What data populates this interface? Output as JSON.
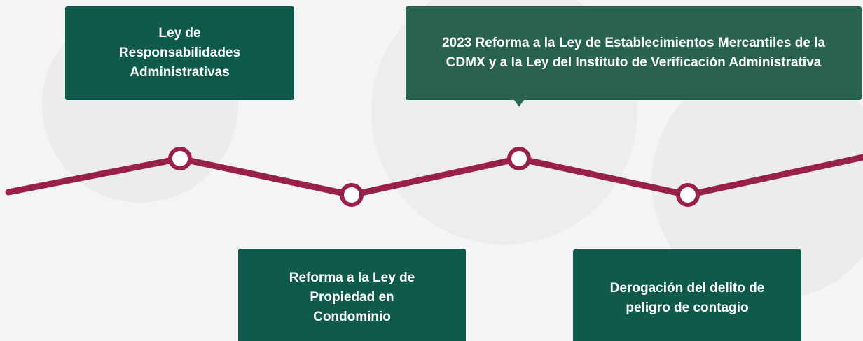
{
  "timeline": {
    "items": [
      {
        "label": "Ley de Responsabilidades Administrativas"
      },
      {
        "label": "Reforma a la Ley de Propiedad en Condominio"
      },
      {
        "label": "2023 Reforma a la Ley de Establecimientos Mercantiles de la CDMX y a la Ley del Instituto de Verificación Administrativa"
      },
      {
        "label": "Derogación del delito de peligro de contagio"
      }
    ]
  }
}
